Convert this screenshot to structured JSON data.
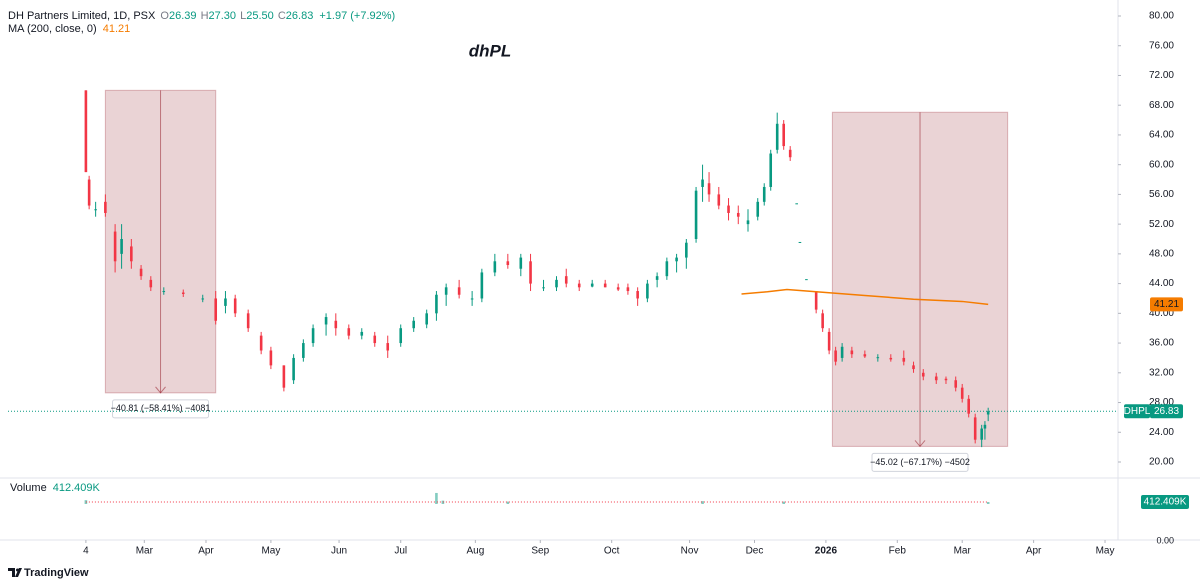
{
  "header": {
    "symbol": "DH Partners Limited, 1D, PSX",
    "open_key": "O",
    "open": "26.39",
    "high_key": "H",
    "high": "27.30",
    "low_key": "L",
    "low": "25.50",
    "close_key": "C",
    "close": "26.83",
    "change": "+1.97 (+7.92%)"
  },
  "chart_data": {
    "type": "candlestick",
    "title": "dhPL",
    "x": [
      0,
      1,
      3,
      6,
      9,
      11,
      14,
      17,
      20,
      24,
      30,
      36,
      40,
      43,
      46,
      50,
      54,
      57,
      61,
      64,
      67,
      70,
      74,
      77,
      81,
      85,
      89,
      93,
      97,
      101,
      105,
      108,
      111,
      115,
      119,
      122,
      126,
      130,
      134,
      137,
      141,
      145,
      148,
      152,
      156,
      160,
      164,
      167,
      170,
      173,
      176,
      179,
      182,
      185,
      188,
      190,
      192,
      195,
      198,
      201,
      204,
      207,
      209,
      211,
      213,
      215,
      217,
      219,
      220,
      222,
      225,
      227,
      229,
      231,
      233,
      236,
      240,
      244,
      248,
      252,
      255,
      258,
      262,
      265,
      268,
      270,
      272,
      274,
      276,
      277,
      278
    ],
    "open": [
      70,
      58,
      54,
      55,
      51,
      48,
      49,
      46,
      44.5,
      43,
      42.8,
      42,
      42,
      41,
      42,
      40,
      37,
      35,
      33,
      31,
      34,
      36,
      38.5,
      39,
      38,
      37,
      37,
      36,
      36,
      38,
      38.5,
      40,
      42.5,
      43.5,
      42,
      42,
      45.5,
      47,
      46,
      47,
      43.5,
      43.5,
      45,
      44,
      43.6,
      44,
      43.5,
      43.5,
      43,
      42,
      44.5,
      45,
      47,
      47.5,
      50,
      57,
      57.5,
      56,
      54.5,
      53.5,
      52,
      53,
      55,
      57,
      62,
      65.5,
      62,
      54.8,
      49.6,
      44.6,
      43,
      40,
      37.5,
      35,
      34,
      35,
      34.5,
      34,
      34,
      34,
      33,
      32,
      31.5,
      31.2,
      31,
      30,
      28.5,
      26,
      23,
      24.5,
      26.39
    ],
    "high": [
      70,
      58.5,
      55,
      56,
      52,
      52,
      50,
      46.5,
      45,
      43.5,
      43.2,
      42.5,
      43,
      43,
      42.5,
      40.5,
      37.5,
      35.5,
      33,
      34.5,
      36.5,
      38.5,
      40,
      40,
      38.5,
      38,
      37.5,
      37,
      38.5,
      39.5,
      40.5,
      43,
      44,
      44.5,
      43,
      46,
      48,
      48,
      48,
      48,
      44.5,
      45,
      46,
      44.5,
      44.5,
      44.5,
      44,
      44,
      43.5,
      44.5,
      45.5,
      47.5,
      48,
      50,
      57,
      60,
      59,
      57,
      55.5,
      54.5,
      54,
      55.5,
      57.5,
      62,
      67,
      66,
      62.5,
      54.8,
      49.6,
      44.6,
      43,
      40.5,
      38,
      35.5,
      36,
      35.5,
      35,
      34.5,
      34.5,
      35,
      33.5,
      32.5,
      32,
      31.5,
      31.5,
      30.5,
      29,
      26.5,
      25,
      25.5,
      27.3
    ],
    "low": [
      59,
      54,
      53,
      53,
      45.5,
      46,
      46,
      44.5,
      43,
      42.5,
      42.2,
      41.5,
      38.5,
      40,
      39.5,
      37.5,
      34.5,
      32.5,
      29.5,
      30.5,
      33.5,
      35.5,
      37,
      37,
      36.5,
      36.5,
      35.5,
      34,
      35.5,
      37.5,
      38,
      39,
      41,
      42,
      41,
      41.5,
      45,
      46,
      45,
      43,
      43,
      43,
      43.5,
      43,
      43.5,
      43.5,
      43,
      42.5,
      41,
      41.5,
      43.5,
      44.5,
      45.5,
      46,
      49.5,
      55,
      55,
      54,
      52.5,
      52,
      51,
      52.5,
      54.5,
      56.5,
      61.5,
      62,
      60.5,
      54.8,
      49.6,
      44.6,
      40,
      37.5,
      34.5,
      33,
      33.5,
      34,
      34,
      33.5,
      33.5,
      33,
      32,
      31,
      30.5,
      30.5,
      29.5,
      28,
      26,
      22.5,
      22,
      23,
      25.5
    ],
    "close": [
      59,
      54.5,
      54,
      53.5,
      47,
      50,
      47,
      45,
      43.5,
      43,
      42.6,
      42,
      39,
      42,
      40,
      38,
      35,
      33,
      30,
      34,
      36,
      38,
      39.5,
      38,
      37,
      37.5,
      36,
      35,
      38,
      39,
      40,
      42.5,
      43.5,
      42.5,
      42,
      45.5,
      47,
      46.5,
      47.5,
      44,
      43.5,
      44.5,
      44,
      43.5,
      44,
      43.5,
      43.2,
      43,
      42,
      44,
      45,
      47,
      47.5,
      49.5,
      56.5,
      58,
      56,
      54.5,
      53.5,
      53,
      52.5,
      55,
      57,
      61.5,
      65.5,
      62.5,
      61,
      54.8,
      49.6,
      44.6,
      40.5,
      38,
      35,
      33.5,
      35.5,
      34.5,
      34.2,
      34.1,
      33.8,
      33.5,
      32.5,
      31.5,
      31,
      31,
      30,
      28.5,
      26.5,
      23,
      24.5,
      25,
      26.83
    ],
    "up_color": "#089981",
    "down_color": "#f23645",
    "xlim": [
      -24,
      318
    ],
    "xticks": [
      {
        "value": 0,
        "label": "4"
      },
      {
        "value": 18,
        "label": "Mar"
      },
      {
        "value": 37,
        "label": "Apr"
      },
      {
        "value": 57,
        "label": "May"
      },
      {
        "value": 78,
        "label": "Jun"
      },
      {
        "value": 97,
        "label": "Jul"
      },
      {
        "value": 120,
        "label": "Aug"
      },
      {
        "value": 140,
        "label": "Sep"
      },
      {
        "value": 162,
        "label": "Oct"
      },
      {
        "value": 186,
        "label": "Nov"
      },
      {
        "value": 206,
        "label": "Dec"
      },
      {
        "value": 228,
        "label": "2026"
      },
      {
        "value": 250,
        "label": "Feb"
      },
      {
        "value": 270,
        "label": "Mar"
      },
      {
        "value": 292,
        "label": "Apr"
      },
      {
        "value": 314,
        "label": "May"
      }
    ],
    "ylim": [
      20,
      80
    ],
    "yticks": [
      {
        "value": 20,
        "label": "20.00"
      },
      {
        "value": 24,
        "label": "24.00"
      },
      {
        "value": 28,
        "label": "28.00"
      },
      {
        "value": 32,
        "label": "32.00"
      },
      {
        "value": 36,
        "label": "36.00"
      },
      {
        "value": 40,
        "label": "40.00"
      },
      {
        "value": 44,
        "label": "44.00"
      },
      {
        "value": 48,
        "label": "48.00"
      },
      {
        "value": 52,
        "label": "52.00"
      },
      {
        "value": 56,
        "label": "56.00"
      },
      {
        "value": 60,
        "label": "60.00"
      },
      {
        "value": 64,
        "label": "64.00"
      },
      {
        "value": 68,
        "label": "68.00"
      },
      {
        "value": 72,
        "label": "72.00"
      },
      {
        "value": 76,
        "label": "76.00"
      },
      {
        "value": 80,
        "label": "80.00"
      }
    ],
    "grid": false,
    "ma": {
      "name": "MA (200, close, 0)",
      "color": "#f57c00",
      "x": [
        202,
        210,
        216,
        222,
        240,
        255,
        270,
        278
      ],
      "values": [
        42.6,
        42.9,
        43.2,
        43.0,
        42.4,
        41.9,
        41.6,
        41.21
      ],
      "value_label": "41.21"
    },
    "last_price": {
      "symbol": "DHPL",
      "value": 26.83,
      "label": "26.83",
      "color": "#089981"
    },
    "measures": [
      {
        "x": [
          6,
          40
        ],
        "y": [
          70,
          29.3
        ],
        "label": "−40.81 (−58.41%) −4081"
      },
      {
        "x": [
          230,
          284
        ],
        "y": [
          67.05,
          22.1
        ],
        "label": "−45.02 (−67.17%) −4502"
      }
    ],
    "volume": {
      "name": "Volume",
      "value_label": "412.409K",
      "color": "#089981",
      "x": [
        0,
        108,
        110,
        130,
        190,
        215,
        278
      ],
      "values": [
        800000,
        2300000,
        700000,
        500000,
        600000,
        500000,
        412409
      ],
      "ylim": [
        0,
        5000000
      ],
      "ticks": [
        {
          "value": 0,
          "label": "0.00"
        }
      ]
    }
  },
  "footer": {
    "brand": "TradingView"
  }
}
